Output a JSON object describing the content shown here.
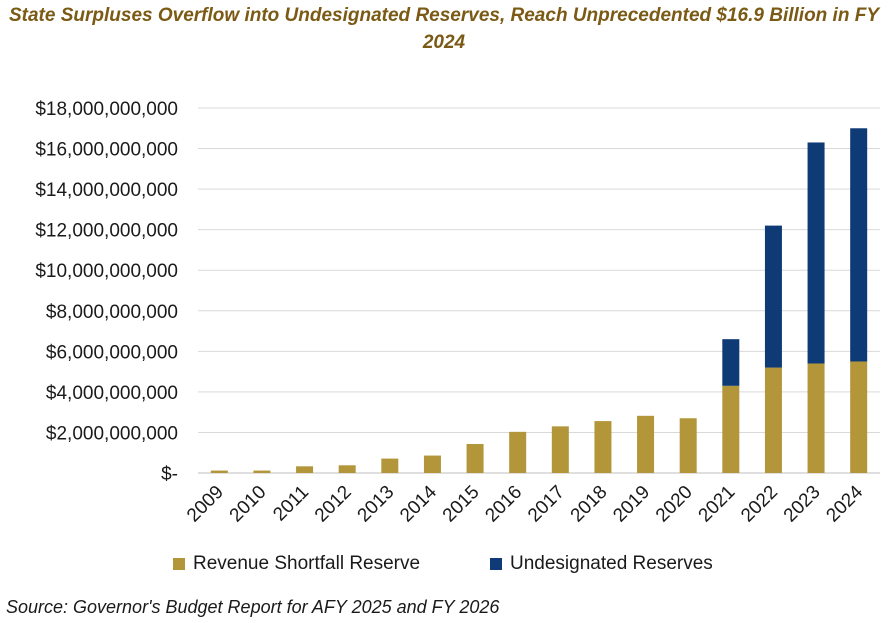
{
  "chart_data": {
    "type": "bar",
    "stacked": true,
    "title": "State Surpluses Overflow into Undesignated Reserves, Reach Unprecedented $16.9 Billion in FY 2024",
    "categories": [
      "2009",
      "2010",
      "2011",
      "2012",
      "2013",
      "2014",
      "2015",
      "2016",
      "2017",
      "2018",
      "2019",
      "2020",
      "2021",
      "2022",
      "2023",
      "2024"
    ],
    "series": [
      {
        "name": "Revenue Shortfall Reserve",
        "color": "#b3953a",
        "values": [
          120000000,
          120000000,
          330000000,
          380000000,
          710000000,
          860000000,
          1430000000,
          2030000000,
          2300000000,
          2560000000,
          2820000000,
          2700000000,
          4300000000,
          5200000000,
          5400000000,
          5500000000
        ]
      },
      {
        "name": "Undesignated Reserves",
        "color": "#0e3a75",
        "values": [
          0,
          0,
          0,
          0,
          0,
          0,
          0,
          0,
          0,
          0,
          0,
          0,
          2300000000,
          7000000000,
          10900000000,
          11500000000
        ]
      }
    ],
    "yticks": [
      "$-",
      "$2,000,000,000",
      "$4,000,000,000",
      "$6,000,000,000",
      "$8,000,000,000",
      "$10,000,000,000",
      "$12,000,000,000",
      "$14,000,000,000",
      "$16,000,000,000",
      "$18,000,000,000"
    ],
    "ylim": [
      0,
      18000000000
    ],
    "grid": true,
    "legend_position": "bottom"
  },
  "source": "Source: Governor's Budget Report for AFY 2025 and FY 2026"
}
